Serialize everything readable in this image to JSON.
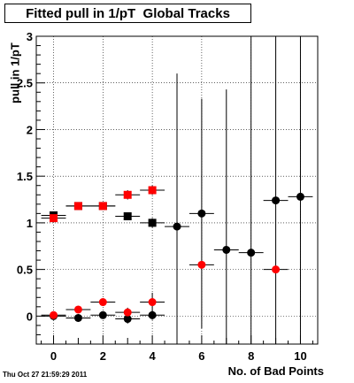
{
  "title": "Fitted pull in 1/pT  Global Tracks",
  "timestamp": "Thu Oct 27 21:59:29 2011",
  "chart_data": {
    "type": "scatter",
    "title": "Fitted pull in 1/pT  Global Tracks",
    "xlabel": "No. of Bad Points",
    "ylabel": "pull in 1/pT",
    "xlim": [
      -0.7,
      10.7
    ],
    "ylim": [
      -0.3,
      3.0
    ],
    "xticks": [
      0,
      2,
      4,
      6,
      8,
      10
    ],
    "yticks": [
      0,
      0.5,
      1,
      1.5,
      2,
      2.5,
      3
    ],
    "ytick_labels": [
      "0",
      "0.5",
      "1",
      "1.5",
      "2",
      "2.5",
      "3"
    ],
    "grid": true,
    "series": [
      {
        "marker": "square",
        "color": "#000000",
        "points": [
          {
            "x": 0,
            "y": 1.08,
            "err": 0.02
          },
          {
            "x": 1,
            "y": 1.18,
            "err": 0.02
          },
          {
            "x": 2,
            "y": 1.18,
            "err": 0.02
          },
          {
            "x": 3,
            "y": 1.07,
            "err": 0.02
          },
          {
            "x": 4,
            "y": 1.0,
            "err": 0.05
          }
        ]
      },
      {
        "marker": "square",
        "color": "#ff0000",
        "points": [
          {
            "x": 0,
            "y": 1.05,
            "err": 0.02
          },
          {
            "x": 1,
            "y": 1.18,
            "err": 0.02
          },
          {
            "x": 2,
            "y": 1.18,
            "err": 0.02
          },
          {
            "x": 3,
            "y": 1.3,
            "err": 0.05
          },
          {
            "x": 4,
            "y": 1.35,
            "err": 0.05
          }
        ]
      },
      {
        "marker": "circle",
        "color": "#000000",
        "points": [
          {
            "x": 0,
            "y": 0.0,
            "err": 0.02
          },
          {
            "x": 1,
            "y": -0.02,
            "err": 0.02
          },
          {
            "x": 2,
            "y": 0.01,
            "err": 0.02
          },
          {
            "x": 3,
            "y": -0.03,
            "err": 0.05
          },
          {
            "x": 4,
            "y": 0.01,
            "err": 0.05
          },
          {
            "x": 5,
            "y": 0.96,
            "err": 1.64
          },
          {
            "x": 6,
            "y": 1.1,
            "err": 1.23
          },
          {
            "x": 7,
            "y": 0.71,
            "err": 1.72
          },
          {
            "x": 8,
            "y": 0.68,
            "err": 2.32
          },
          {
            "x": 9,
            "y": 1.24,
            "err": 1.76
          },
          {
            "x": 10,
            "y": 1.28,
            "err": 1.72
          }
        ]
      },
      {
        "marker": "circle",
        "color": "#ff0000",
        "points": [
          {
            "x": 0,
            "y": 0.01,
            "err": 0.02
          },
          {
            "x": 1,
            "y": 0.07,
            "err": 0.02
          },
          {
            "x": 2,
            "y": 0.15,
            "err": 0.03
          },
          {
            "x": 3,
            "y": 0.04,
            "err": 0.05
          },
          {
            "x": 4,
            "y": 0.15,
            "err": 0.1
          },
          {
            "x": 6,
            "y": 0.55,
            "err": 0.0
          },
          {
            "x": 9,
            "y": 0.5,
            "err": 0.0
          }
        ]
      }
    ]
  }
}
